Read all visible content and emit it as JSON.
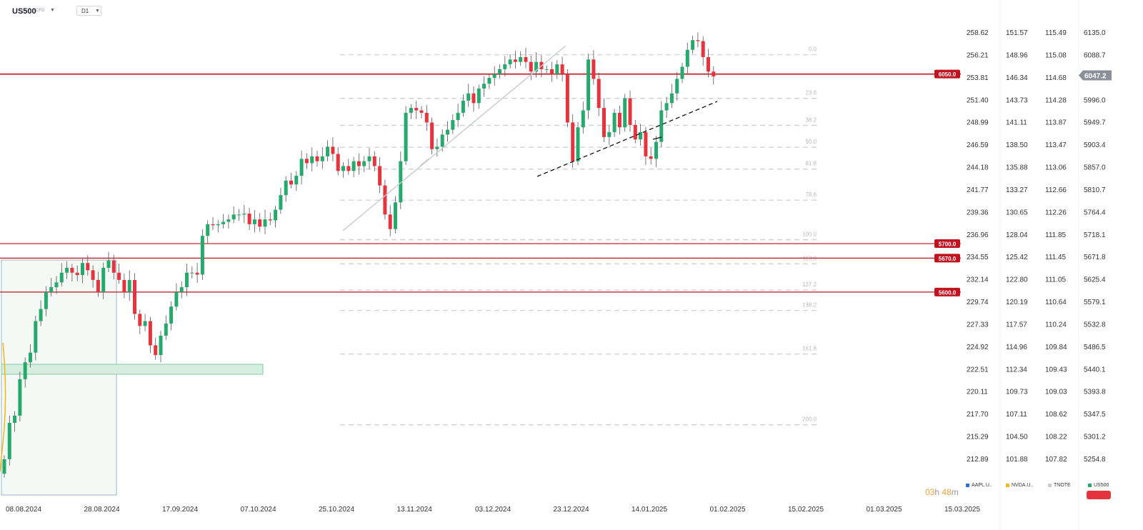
{
  "header": {
    "symbol": "US500",
    "symbol_sub": "CFD",
    "timeframe": "D1"
  },
  "colors": {
    "up": "#26a96c",
    "down": "#e5343d",
    "level": "#c1121f",
    "fib": "#cfd3d8",
    "grid_text": "#333333"
  },
  "price_axes": {
    "AAPL": [
      "258.62",
      "256.21",
      "253.81",
      "251.40",
      "248.99",
      "246.59",
      "244.18",
      "241.77",
      "239.36",
      "236.96",
      "234.55",
      "232.14",
      "229.74",
      "227.33",
      "224.92",
      "222.51",
      "220.11",
      "217.70",
      "215.29",
      "212.89"
    ],
    "NVDA": [
      "151.57",
      "148.96",
      "146.34",
      "143.73",
      "141.11",
      "138.50",
      "135.88",
      "133.27",
      "130.65",
      "128.04",
      "125.42",
      "122.80",
      "120.19",
      "117.57",
      "114.96",
      "112.34",
      "109.73",
      "107.11",
      "104.50",
      "101.88"
    ],
    "TNOTE": [
      "115.49",
      "115.08",
      "114.68",
      "114.28",
      "113.87",
      "113.47",
      "113.06",
      "112.66",
      "112.26",
      "111.85",
      "111.45",
      "111.05",
      "110.64",
      "110.24",
      "109.84",
      "109.43",
      "109.03",
      "108.62",
      "108.22",
      "107.82"
    ],
    "US500": [
      "6135.0",
      "6088.7",
      "6047.2",
      "5996.0",
      "5949.7",
      "5903.4",
      "5857.0",
      "5810.7",
      "5764.4",
      "5718.1",
      "5671.8",
      "5625.4",
      "5579.1",
      "5532.8",
      "5486.5",
      "5440.1",
      "5393.8",
      "5347.5",
      "5301.2",
      "5254.8"
    ]
  },
  "current_price": "6047.2",
  "dates": [
    "08.08.2024",
    "28.08.2024",
    "17.09.2024",
    "07.10.2024",
    "25.10.2024",
    "13.11.2024",
    "03.12.2024",
    "23.12.2024",
    "14.01.2025",
    "01.02.2025",
    "15.02.2025",
    "01.03.2025",
    "15.03.2025"
  ],
  "levels": [
    {
      "label": "6050.0",
      "value": 6050.0
    },
    {
      "label": "5700.0",
      "value": 5700.0
    },
    {
      "label": "5670.0",
      "value": 5670.0
    },
    {
      "label": "5600.0",
      "value": 5600.0
    }
  ],
  "fib_levels": [
    "0.0",
    "23.6",
    "38.2",
    "50.0",
    "61.8",
    "78.6",
    "100.0",
    "113.0",
    "127.2",
    "138.2",
    "161.8",
    "200.0"
  ],
  "legend": [
    {
      "label": "AAPL.U..",
      "color": "#2f6fe0"
    },
    {
      "label": "NVDA.U..",
      "color": "#f2b51d"
    },
    {
      "label": "TNOTE",
      "color": "#cccccc"
    },
    {
      "label": "US500",
      "color": "#26a96c"
    }
  ],
  "timer": {
    "hours": "03",
    "h": "h",
    "minutes": "48",
    "m": "m"
  },
  "chart_data": {
    "type": "candlestick",
    "symbol": "US500",
    "timeframe": "D1",
    "ylim": [
      5254.8,
      6135.0
    ],
    "x_ticks": [
      "08.08.2024",
      "28.08.2024",
      "17.09.2024",
      "07.10.2024",
      "25.10.2024",
      "13.11.2024",
      "03.12.2024",
      "23.12.2024",
      "14.01.2025",
      "01.02.2025",
      "15.02.2025",
      "01.03.2025",
      "15.03.2025"
    ],
    "closes": [
      5255,
      5330,
      5345,
      5420,
      5455,
      5475,
      5540,
      5565,
      5600,
      5610,
      5620,
      5640,
      5650,
      5640,
      5635,
      5660,
      5645,
      5625,
      5600,
      5650,
      5665,
      5640,
      5625,
      5600,
      5625,
      5555,
      5530,
      5540,
      5490,
      5470,
      5510,
      5535,
      5570,
      5600,
      5610,
      5640,
      5640,
      5636,
      5716,
      5740,
      5738,
      5740,
      5745,
      5750,
      5760,
      5760,
      5762,
      5740,
      5750,
      5735,
      5750,
      5748,
      5770,
      5800,
      5830,
      5822,
      5840,
      5875,
      5866,
      5880,
      5870,
      5880,
      5900,
      5885,
      5850,
      5860,
      5850,
      5870,
      5860,
      5870,
      5880,
      5860,
      5820,
      5760,
      5730,
      5785,
      5870,
      5970,
      5980,
      5975,
      5970,
      5950,
      5895,
      5900,
      5925,
      5935,
      5955,
      5970,
      5995,
      6010,
      5990,
      6020,
      6030,
      6042,
      6050,
      6060,
      6070,
      6080,
      6075,
      6085,
      6075,
      6055,
      6075,
      6060,
      6060,
      6050,
      6070,
      6050,
      5950,
      5870,
      5940,
      5975,
      6080,
      6040,
      5980,
      5920,
      5930,
      5970,
      5940,
      6000,
      5945,
      5915,
      5930,
      5880,
      5875,
      5910,
      5975,
      5990,
      6010,
      6040,
      6065,
      6100,
      6120,
      6118,
      6085,
      6055,
      6045
    ]
  }
}
